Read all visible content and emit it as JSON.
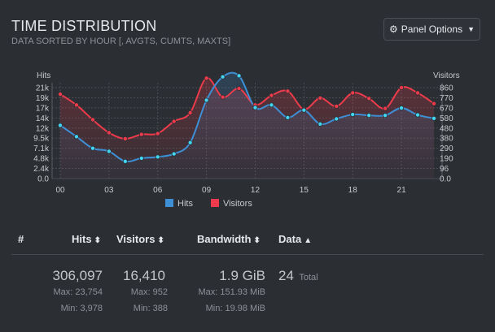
{
  "panel": {
    "title": "TIME DISTRIBUTION",
    "subtitle": "DATA SORTED BY HOUR [, AVGTS, CUMTS, MAXTS]",
    "options_label": "Panel Options",
    "options_icon": "gear-icon"
  },
  "chart_data": {
    "type": "line",
    "left_axis_label": "Hits",
    "right_axis_label": "Visitors",
    "left_ticks": [
      "21k",
      "19k",
      "17k",
      "14k",
      "12k",
      "9.5k",
      "7.1k",
      "4.8k",
      "2.4k",
      "0.0"
    ],
    "right_ticks": [
      "860",
      "770",
      "670",
      "580",
      "480",
      "380",
      "290",
      "190",
      "96",
      "0.0"
    ],
    "x_ticks": [
      "00",
      "03",
      "06",
      "09",
      "12",
      "15",
      "18",
      "21"
    ],
    "x": [
      0,
      1,
      2,
      3,
      4,
      5,
      6,
      7,
      8,
      9,
      10,
      11,
      12,
      13,
      14,
      15,
      16,
      17,
      18,
      19,
      20,
      21,
      22,
      23
    ],
    "left_ylim": [
      0,
      26000
    ],
    "right_ylim": [
      0,
      1060
    ],
    "series": [
      {
        "name": "Hits",
        "color": "#3d8fd6",
        "axis": "left",
        "values": [
          12300,
          9700,
          7000,
          6300,
          3978,
          4700,
          5000,
          5700,
          8300,
          18100,
          23500,
          23754,
          16400,
          17000,
          14100,
          15800,
          12600,
          13800,
          14800,
          14600,
          14600,
          16300,
          14700,
          13900
        ]
      },
      {
        "name": "Visitors",
        "color": "#ee3b4b",
        "axis": "left",
        "values": [
          19500,
          17000,
          13600,
          10600,
          9200,
          10200,
          10400,
          13200,
          15200,
          23200,
          18800,
          20800,
          17000,
          19200,
          20200,
          16000,
          18600,
          16700,
          19800,
          18500,
          16200,
          21000,
          19800,
          17300
        ]
      }
    ],
    "legend": [
      "Hits",
      "Visitors"
    ],
    "legend_position": "bottom"
  },
  "table": {
    "headers": {
      "index": "#",
      "hits": "Hits",
      "visitors": "Visitors",
      "bandwidth": "Bandwidth",
      "data": "Data"
    },
    "sort_both": "⬍",
    "sort_up": "▲",
    "totals": {
      "hits": "306,097",
      "hits_max": "Max: 23,754",
      "hits_min": "Min: 3,978",
      "visitors": "16,410",
      "visitors_max": "Max: 952",
      "visitors_min": "Min: 388",
      "bandwidth": "1.9 GiB",
      "bandwidth_max": "Max: 151.93 MiB",
      "bandwidth_min": "Min: 19.98 MiB",
      "data": "24",
      "data_label": "Total"
    }
  }
}
